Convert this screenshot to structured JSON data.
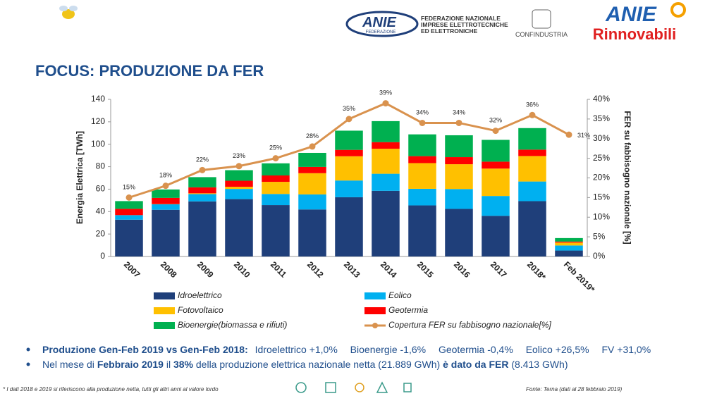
{
  "header": {
    "federation_logo": "ANIE",
    "federation_logo_sub": "FEDERAZIONE",
    "federation_lines": [
      "FEDERAZIONE NAZIONALE",
      "IMPRESE ELETTROTECNICHE",
      "ED ELETTRONICHE"
    ],
    "confindustria": "CONFINDUSTRIA",
    "brand_top": "ANIE",
    "brand_bottom": "Rinnovabili"
  },
  "title": "FOCUS: PRODUZIONE DA FER",
  "chart_data": {
    "type": "bar",
    "stacked": true,
    "categories": [
      "2007",
      "2008",
      "2009",
      "2010",
      "2011",
      "2012",
      "2013",
      "2014",
      "2015",
      "2016",
      "2017",
      "2018*",
      "Feb 2019*"
    ],
    "y_label": "Energia Elettrica [TWh]",
    "y2_label": "FER su fabbisogno nazionale [%]",
    "ylim": [
      0,
      140
    ],
    "yticks": [
      0,
      20,
      40,
      60,
      80,
      100,
      120,
      140
    ],
    "y2lim": [
      0,
      40
    ],
    "y2ticks": [
      {
        "value": 0,
        "label": "0%"
      },
      {
        "value": 5,
        "label": "5%"
      },
      {
        "value": 10,
        "label": "10%"
      },
      {
        "value": 15,
        "label": "15%"
      },
      {
        "value": 20,
        "label": "20%"
      },
      {
        "value": 25,
        "label": "25%"
      },
      {
        "value": 30,
        "label": "30%"
      },
      {
        "value": 35,
        "label": "35%"
      },
      {
        "value": 40,
        "label": "40%"
      }
    ],
    "grid": false,
    "series": [
      {
        "name": "Idroelettrico",
        "color": "#1f3f7a",
        "values": [
          32.8,
          41.6,
          49.1,
          51.1,
          45.8,
          41.9,
          52.8,
          58.5,
          45.5,
          42.4,
          36.2,
          49.3,
          5.3
        ]
      },
      {
        "name": "Eolico",
        "color": "#00b0f0",
        "values": [
          4.0,
          4.9,
          6.5,
          9.1,
          9.9,
          13.4,
          14.9,
          15.2,
          14.8,
          17.7,
          17.7,
          17.5,
          4.5
        ]
      },
      {
        "name": "Fotovoltaico",
        "color": "#ffc000",
        "values": [
          0.04,
          0.2,
          0.7,
          1.9,
          10.8,
          18.9,
          21.6,
          22.3,
          22.9,
          22.1,
          24.4,
          22.7,
          2.6
        ]
      },
      {
        "name": "Geotermia",
        "color": "#ff0000",
        "values": [
          5.6,
          5.5,
          5.3,
          5.4,
          5.7,
          5.6,
          5.7,
          5.9,
          6.2,
          6.3,
          6.2,
          5.7,
          0.9
        ]
      },
      {
        "name": "Bioenergie(biomassa e rifiuti)",
        "color": "#00b050",
        "values": [
          6.9,
          7.5,
          9.1,
          9.4,
          10.8,
          12.5,
          17.1,
          18.7,
          19.4,
          19.5,
          19.4,
          19.2,
          3.1
        ]
      },
      {
        "name": "Copertura FER su fabbisogno nazionale[%]",
        "type": "line",
        "axis": "y2",
        "color": "#d9924e",
        "values": [
          15,
          18,
          22,
          23,
          25,
          28,
          35,
          39,
          34,
          34,
          32,
          36,
          31
        ],
        "value_labels": [
          "15%",
          "18%",
          "22%",
          "23%",
          "25%",
          "28%",
          "35%",
          "39%",
          "34%",
          "34%",
          "32%",
          "36%",
          "31%"
        ]
      }
    ]
  },
  "bullets": [
    [
      "Produzione Gen-Feb 2019 vs Gen-Feb 2018:",
      "Idroelettrico +1,0%",
      "Bioenergie -1,6%",
      "Geotermia -0,4%",
      "Eolico +26,5%",
      "FV +31,0%"
    ],
    [
      "Nel mese di ",
      "Febbraio 2019",
      " il ",
      "38%",
      " della produzione elettrica nazionale netta (21.889 GWh) ",
      "è dato da FER",
      " (8.413 GWh)"
    ]
  ],
  "footnote": "* I dati 2018 e 2019 si riferiscono alla produzione netta, tutti gli altri anni al valore lordo",
  "source": "Fonte: Terna (dati al 28 febbraio 2019)"
}
